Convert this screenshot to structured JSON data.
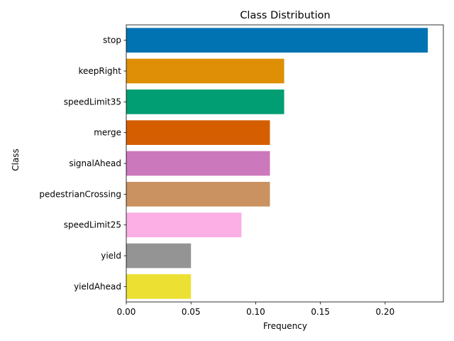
{
  "chart_data": {
    "type": "bar",
    "orientation": "horizontal",
    "title": "Class Distribution",
    "xlabel": "Frequency",
    "ylabel": "Class",
    "xlim": [
      0,
      0.245
    ],
    "xticks": [
      0.0,
      0.05,
      0.1,
      0.15,
      0.2
    ],
    "xtick_labels": [
      "0.00",
      "0.05",
      "0.10",
      "0.15",
      "0.20"
    ],
    "grid": false,
    "legend": "none",
    "categories": [
      "stop",
      "keepRight",
      "speedLimit35",
      "merge",
      "signalAhead",
      "pedestrianCrossing",
      "speedLimit25",
      "yield",
      "yieldAhead"
    ],
    "values": [
      0.233,
      0.122,
      0.122,
      0.111,
      0.111,
      0.111,
      0.089,
      0.05,
      0.05
    ],
    "colors": [
      "#0173b2",
      "#de8f05",
      "#029e73",
      "#d55e00",
      "#cc78bc",
      "#ca9161",
      "#fbafe4",
      "#949494",
      "#ece133"
    ]
  }
}
